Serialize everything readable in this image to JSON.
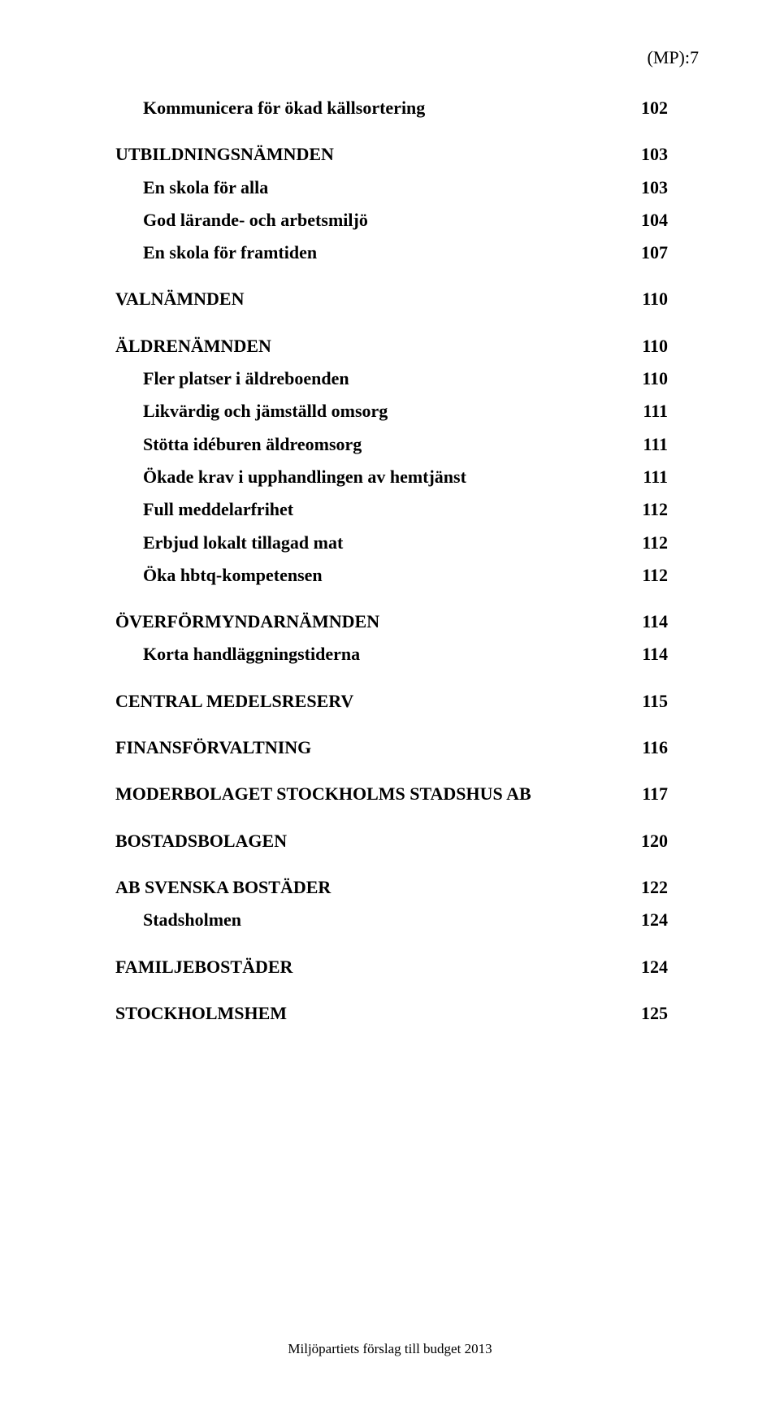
{
  "header_right": "(MP):7",
  "toc": [
    {
      "label": "Kommunicera för ökad källsortering",
      "page": "102",
      "indent": 1,
      "gap": "none"
    },
    {
      "label": "UTBILDNINGSNÄMNDEN",
      "page": "103",
      "indent": 0,
      "gap": "md"
    },
    {
      "label": "En skola för alla",
      "page": "103",
      "indent": 1,
      "gap": "sm"
    },
    {
      "label": "God lärande- och arbetsmiljö",
      "page": "104",
      "indent": 1,
      "gap": "sm"
    },
    {
      "label": "En skola för framtiden",
      "page": "107",
      "indent": 1,
      "gap": "sm"
    },
    {
      "label": "VALNÄMNDEN",
      "page": "110",
      "indent": 0,
      "gap": "md"
    },
    {
      "label": "ÄLDRENÄMNDEN",
      "page": "110",
      "indent": 0,
      "gap": "md"
    },
    {
      "label": "Fler platser i äldreboenden",
      "page": "110",
      "indent": 1,
      "gap": "sm"
    },
    {
      "label": "Likvärdig och jämställd omsorg",
      "page": "111",
      "indent": 1,
      "gap": "sm"
    },
    {
      "label": "Stötta idéburen äldreomsorg",
      "page": "111",
      "indent": 1,
      "gap": "sm"
    },
    {
      "label": "Ökade krav i upphandlingen av hemtjänst",
      "page": "111",
      "indent": 1,
      "gap": "sm"
    },
    {
      "label": "Full meddelarfrihet",
      "page": "112",
      "indent": 1,
      "gap": "sm"
    },
    {
      "label": "Erbjud lokalt tillagad mat",
      "page": "112",
      "indent": 1,
      "gap": "sm"
    },
    {
      "label": "Öka hbtq-kompetensen",
      "page": "112",
      "indent": 1,
      "gap": "sm"
    },
    {
      "label": "ÖVERFÖRMYNDARNÄMNDEN",
      "page": "114",
      "indent": 0,
      "gap": "md"
    },
    {
      "label": "Korta handläggningstiderna",
      "page": "114",
      "indent": 1,
      "gap": "sm"
    },
    {
      "label": "CENTRAL MEDELSRESERV",
      "page": "115",
      "indent": 0,
      "gap": "md"
    },
    {
      "label": "FINANSFÖRVALTNING",
      "page": "116",
      "indent": 0,
      "gap": "md"
    },
    {
      "label": "MODERBOLAGET STOCKHOLMS STADSHUS AB",
      "page": "117",
      "indent": 0,
      "gap": "md"
    },
    {
      "label": "BOSTADSBOLAGEN",
      "page": "120",
      "indent": 0,
      "gap": "md"
    },
    {
      "label": "AB SVENSKA BOSTÄDER",
      "page": "122",
      "indent": 0,
      "gap": "md"
    },
    {
      "label": "Stadsholmen",
      "page": "124",
      "indent": 1,
      "gap": "sm"
    },
    {
      "label": "FAMILJEBOSTÄDER",
      "page": "124",
      "indent": 0,
      "gap": "md"
    },
    {
      "label": "STOCKHOLMSHEM",
      "page": "125",
      "indent": 0,
      "gap": "md"
    }
  ],
  "footer": "Miljöpartiets förslag till budget 2013"
}
